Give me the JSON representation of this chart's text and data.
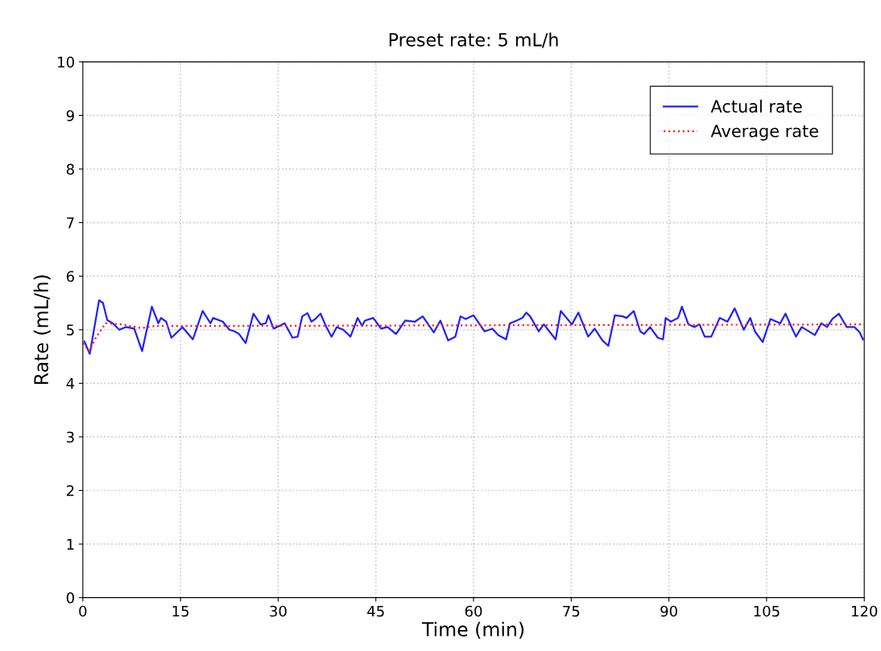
{
  "chart_data": {
    "type": "line",
    "title": "Preset rate: 5 mL/h",
    "xlabel": "Time (min)",
    "ylabel": "Rate (mL/h)",
    "xlim": [
      0,
      120
    ],
    "xticks": [
      0,
      15,
      30,
      45,
      60,
      75,
      90,
      105,
      120
    ],
    "ylim": [
      0,
      10
    ],
    "yticks": [
      0,
      1,
      2,
      3,
      4,
      5,
      6,
      7,
      8,
      9,
      10
    ],
    "grid": true,
    "legend": "top right",
    "series": [
      {
        "name": "Actual rate",
        "color": "#2020ff",
        "line_style": "solid",
        "x": [
          0.25,
          1.07,
          2.5,
          3.1,
          3.75,
          4.6,
          5.6,
          6.6,
          7.9,
          9.1,
          10.6,
          11.6,
          12.0,
          12.8,
          13.6,
          15.3,
          16.9,
          18.4,
          19.6,
          20.0,
          21.5,
          22.5,
          23.3,
          24.0,
          25.0,
          26.2,
          27.3,
          28.1,
          28.5,
          29.3,
          31.0,
          32.2,
          33.0,
          33.7,
          34.5,
          35.1,
          35.7,
          36.5,
          37.4,
          38.2,
          39.0,
          40.0,
          41.1,
          42.2,
          42.9,
          43.3,
          44.6,
          45.8,
          46.8,
          48.1,
          49.5,
          51.0,
          52.2,
          53.9,
          54.9,
          56.1,
          57.2,
          58.0,
          58.8,
          60.0,
          61.7,
          62.9,
          63.8,
          65.0,
          65.6,
          66.6,
          67.5,
          68.1,
          68.7,
          70.0,
          70.8,
          72.6,
          73.4,
          75.1,
          76.1,
          77.6,
          78.6,
          79.8,
          80.7,
          81.7,
          82.9,
          83.5,
          84.6,
          85.6,
          86.2,
          87.1,
          88.3,
          89.1,
          89.5,
          90.3,
          91.4,
          92.0,
          93.0,
          93.9,
          94.7,
          95.5,
          96.5,
          97.8,
          99.0,
          100.1,
          101.5,
          102.5,
          103.2,
          104.4,
          105.6,
          107.1,
          107.9,
          109.5,
          110.4,
          112.4,
          113.4,
          114.3,
          115.1,
          116.1,
          117.3,
          118.5,
          119.3,
          119.8
        ],
        "values": [
          4.78,
          4.55,
          5.55,
          5.5,
          5.18,
          5.12,
          5.0,
          5.05,
          5.02,
          4.6,
          5.43,
          5.12,
          5.22,
          5.15,
          4.85,
          5.05,
          4.82,
          5.35,
          5.12,
          5.22,
          5.15,
          5.0,
          4.97,
          4.92,
          4.75,
          5.3,
          5.1,
          5.12,
          5.27,
          5.02,
          5.12,
          4.85,
          4.87,
          5.25,
          5.31,
          5.15,
          5.2,
          5.3,
          5.05,
          4.87,
          5.05,
          5.0,
          4.87,
          5.22,
          5.07,
          5.17,
          5.22,
          5.02,
          5.05,
          4.92,
          5.17,
          5.15,
          5.25,
          4.95,
          5.17,
          4.8,
          4.87,
          5.25,
          5.2,
          5.27,
          4.97,
          5.02,
          4.9,
          4.82,
          5.12,
          5.17,
          5.22,
          5.32,
          5.25,
          4.97,
          5.1,
          4.82,
          5.35,
          5.1,
          5.32,
          4.87,
          5.02,
          4.8,
          4.7,
          5.27,
          5.25,
          5.22,
          5.35,
          4.97,
          4.92,
          5.05,
          4.85,
          4.82,
          5.22,
          5.15,
          5.22,
          5.43,
          5.1,
          5.05,
          5.1,
          4.87,
          4.87,
          5.22,
          5.15,
          5.4,
          5.0,
          5.22,
          4.97,
          4.77,
          5.2,
          5.12,
          5.3,
          4.87,
          5.05,
          4.9,
          5.12,
          5.05,
          5.2,
          5.3,
          5.05,
          5.05,
          4.95,
          4.82
        ]
      },
      {
        "name": "Average rate",
        "color": "#ff2020",
        "line_style": "dotted",
        "x": [
          0,
          1,
          2,
          3.5,
          6,
          9,
          11,
          20,
          120
        ],
        "values": [
          4.75,
          4.6,
          4.85,
          5.12,
          5.1,
          5.03,
          5.07,
          5.07,
          5.1
        ]
      }
    ]
  }
}
